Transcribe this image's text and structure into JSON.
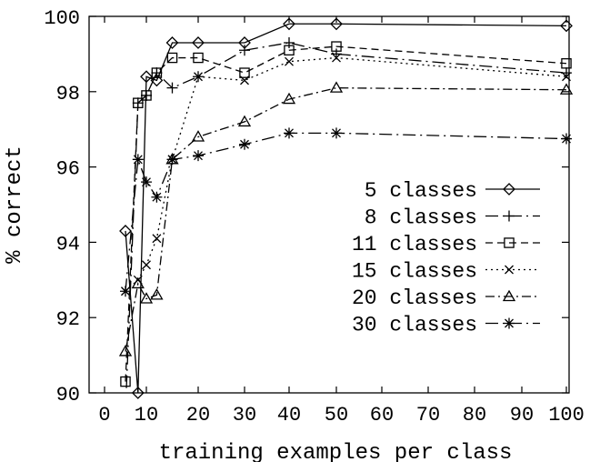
{
  "chart_data": {
    "type": "line",
    "title": "",
    "xlabel": "training examples per class",
    "ylabel": "% correct",
    "xlim": [
      0,
      100
    ],
    "ylim": [
      90,
      100
    ],
    "x_ticks": [
      0,
      10,
      20,
      30,
      40,
      50,
      60,
      70,
      80,
      90,
      100
    ],
    "x_tick_labels": [
      "0",
      "10",
      "20",
      "30",
      "40",
      "50",
      "60",
      "70",
      "80",
      "90",
      "100"
    ],
    "y_ticks": [
      90,
      92,
      94,
      96,
      98,
      100
    ],
    "y_tick_labels": [
      "90",
      "92",
      "94",
      "96",
      "98",
      "100"
    ],
    "x_scale": "categorical-nonlinear (0-10 spacing differs from 10-100)",
    "grid": false,
    "legend_position": "lower-right",
    "series": [
      {
        "name": "5 classes",
        "marker": "diamond",
        "line_style": "solid",
        "x": [
          5,
          8,
          10,
          12,
          15,
          20,
          30,
          40,
          50,
          100
        ],
        "y": [
          94.3,
          90,
          98.4,
          98.3,
          99.3,
          99.3,
          99.3,
          99.8,
          99.8,
          99.75
        ]
      },
      {
        "name": "8 classes",
        "marker": "plus",
        "line_style": "long-dash-dot",
        "x": [
          5,
          8,
          10,
          12,
          15,
          20,
          30,
          40,
          50,
          100
        ],
        "y": [
          89.5,
          97.7,
          97.9,
          98.5,
          98.1,
          98.4,
          99.1,
          99.3,
          99.0,
          98.5
        ]
      },
      {
        "name": "11 classes",
        "marker": "square",
        "line_style": "dashed",
        "x": [
          5,
          8,
          10,
          12,
          15,
          20,
          30,
          40,
          50,
          100
        ],
        "y": [
          90.3,
          97.7,
          97.9,
          98.5,
          98.9,
          98.9,
          98.5,
          99.1,
          99.2,
          98.75
        ]
      },
      {
        "name": "15 classes",
        "marker": "x",
        "line_style": "dotted",
        "x": [
          5,
          8,
          10,
          12,
          15,
          20,
          30,
          40,
          50,
          100
        ],
        "y": [
          92.7,
          93.0,
          93.4,
          94.1,
          96.2,
          98.4,
          98.3,
          98.8,
          98.9,
          98.4
        ]
      },
      {
        "name": "20 classes",
        "marker": "triangle",
        "line_style": "dash-dot",
        "x": [
          5,
          8,
          10,
          12,
          15,
          20,
          30,
          40,
          50,
          100
        ],
        "y": [
          91.1,
          92.9,
          92.5,
          92.6,
          96.2,
          96.8,
          97.2,
          97.8,
          98.1,
          98.05
        ]
      },
      {
        "name": "30 classes",
        "marker": "asterisk",
        "line_style": "long-dash-dot",
        "x": [
          5,
          8,
          10,
          12,
          15,
          20,
          30,
          40,
          50,
          100
        ],
        "y": [
          92.7,
          96.2,
          95.6,
          95.2,
          96.2,
          96.3,
          96.6,
          96.9,
          96.9,
          96.75
        ]
      }
    ]
  }
}
